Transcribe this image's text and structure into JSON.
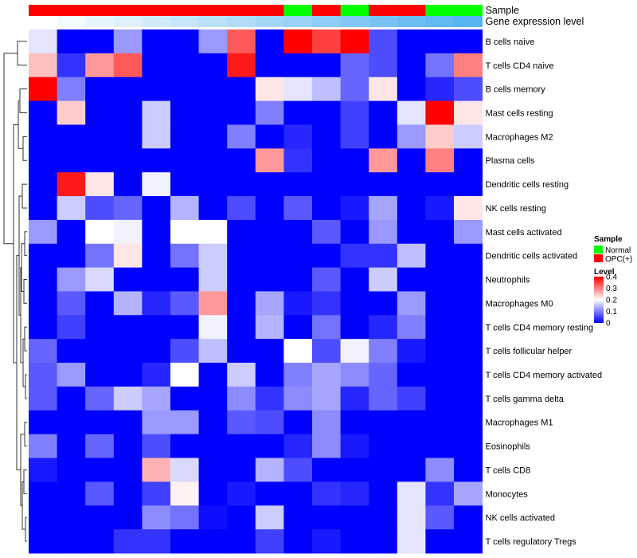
{
  "chart_data": {
    "type": "heatmap",
    "annotation_labels": [
      "Sample",
      "Gene expression level"
    ],
    "rows": [
      "B cells naive",
      "T cells CD4 naive",
      "B cells memory",
      "Mast cells resting",
      "Macrophages M2",
      "Plasma cells",
      "Dendritic cells resting",
      "NK cells resting",
      "Mast cells activated",
      "Dendritic cells activated",
      "Neutrophils",
      "Macrophages M0",
      "T cells CD4 memory resting",
      "T cells follicular helper",
      "T cells CD4 memory activated",
      "T cells gamma delta",
      "Macrophages M1",
      "Eosinophils",
      "T cells CD8",
      "Monocytes",
      "NK cells activated",
      "T cells regulatory  Tregs"
    ],
    "sample_groups": [
      "OPC(+)",
      "OPC(+)",
      "OPC(+)",
      "OPC(+)",
      "OPC(+)",
      "OPC(+)",
      "OPC(+)",
      "OPC(+)",
      "OPC(+)",
      "Normal",
      "OPC(+)",
      "Normal",
      "OPC(+)",
      "OPC(+)",
      "Normal",
      "Normal"
    ],
    "gene_expression_level": [
      0,
      0.04,
      0.08,
      0.12,
      0.16,
      0.2,
      0.24,
      0.28,
      0.32,
      0.36,
      0.4,
      0.44,
      0.48,
      0.52,
      0.56,
      0.6
    ],
    "values": [
      [
        0.18,
        0.0,
        0.0,
        0.12,
        0.0,
        0.0,
        0.12,
        0.33,
        0.0,
        0.4,
        0.35,
        0.4,
        0.06,
        0.0,
        0.0,
        0.0
      ],
      [
        0.25,
        0.04,
        0.28,
        0.33,
        0.0,
        0.0,
        0.0,
        0.38,
        0.0,
        0.0,
        0.0,
        0.08,
        0.06,
        0.0,
        0.09,
        0.3
      ],
      [
        0.4,
        0.1,
        0.0,
        0.0,
        0.0,
        0.0,
        0.0,
        0.0,
        0.22,
        0.18,
        0.15,
        0.08,
        0.22,
        0.0,
        0.03,
        0.06
      ],
      [
        0.0,
        0.24,
        0.0,
        0.0,
        0.16,
        0.0,
        0.0,
        0.0,
        0.1,
        0.0,
        0.0,
        0.05,
        0.0,
        0.18,
        0.4,
        0.22
      ],
      [
        0.0,
        0.0,
        0.0,
        0.0,
        0.16,
        0.0,
        0.0,
        0.1,
        0.0,
        0.03,
        0.0,
        0.05,
        0.0,
        0.12,
        0.24,
        0.16
      ],
      [
        0.0,
        0.0,
        0.0,
        0.0,
        0.0,
        0.0,
        0.0,
        0.0,
        0.28,
        0.04,
        0.0,
        0.0,
        0.28,
        0.0,
        0.3,
        0.0
      ],
      [
        0.0,
        0.38,
        0.22,
        0.0,
        0.19,
        0.0,
        0.0,
        0.0,
        0.0,
        0.0,
        0.0,
        0.0,
        0.0,
        0.0,
        0.0,
        0.0
      ],
      [
        0.0,
        0.16,
        0.06,
        0.08,
        0.0,
        0.14,
        0.0,
        0.06,
        0.0,
        0.07,
        0.0,
        0.02,
        0.13,
        0.0,
        0.02,
        0.22
      ],
      [
        0.12,
        0.0,
        0.2,
        0.19,
        0.0,
        0.2,
        0.2,
        0.0,
        0.0,
        0.0,
        0.07,
        0.0,
        0.12,
        0.0,
        0.0,
        0.12
      ],
      [
        0.0,
        0.0,
        0.09,
        0.22,
        0.0,
        0.09,
        0.16,
        0.0,
        0.0,
        0.0,
        0.0,
        0.04,
        0.04,
        0.15,
        0.0,
        0.0
      ],
      [
        0.0,
        0.12,
        0.17,
        0.0,
        0.0,
        0.0,
        0.16,
        0.0,
        0.0,
        0.0,
        0.07,
        0.0,
        0.16,
        0.0,
        0.0,
        0.0
      ],
      [
        0.0,
        0.07,
        0.0,
        0.14,
        0.03,
        0.07,
        0.28,
        0.0,
        0.13,
        0.02,
        0.04,
        0.0,
        0.0,
        0.12,
        0.0,
        0.0
      ],
      [
        0.0,
        0.05,
        0.0,
        0.0,
        0.0,
        0.0,
        0.19,
        0.0,
        0.14,
        0.0,
        0.09,
        0.0,
        0.03,
        0.1,
        0.0,
        0.0
      ],
      [
        0.08,
        0.0,
        0.0,
        0.0,
        0.0,
        0.06,
        0.15,
        0.0,
        0.0,
        0.2,
        0.06,
        0.19,
        0.1,
        0.02,
        0.0,
        0.0
      ],
      [
        0.07,
        0.12,
        0.0,
        0.0,
        0.03,
        0.2,
        0.0,
        0.16,
        0.0,
        0.1,
        0.13,
        0.11,
        0.08,
        0.0,
        0.0,
        0.0
      ],
      [
        0.07,
        0.0,
        0.08,
        0.16,
        0.13,
        0.0,
        0.0,
        0.11,
        0.04,
        0.11,
        0.13,
        0.03,
        0.08,
        0.05,
        0.0,
        0.0
      ],
      [
        0.0,
        0.0,
        0.0,
        0.0,
        0.12,
        0.12,
        0.0,
        0.07,
        0.06,
        0.0,
        0.11,
        0.0,
        0.0,
        0.0,
        0.0,
        0.0
      ],
      [
        0.1,
        0.0,
        0.08,
        0.0,
        0.06,
        0.0,
        0.0,
        0.0,
        0.0,
        0.03,
        0.11,
        0.02,
        0.0,
        0.0,
        0.0,
        0.0
      ],
      [
        0.02,
        0.0,
        0.0,
        0.0,
        0.26,
        0.17,
        0.0,
        0.0,
        0.14,
        0.06,
        0.0,
        0.0,
        0.0,
        0.0,
        0.11,
        0.0
      ],
      [
        0.0,
        0.0,
        0.07,
        0.0,
        0.05,
        0.21,
        0.0,
        0.02,
        0.0,
        0.0,
        0.04,
        0.03,
        0.0,
        0.18,
        0.04,
        0.13
      ],
      [
        0.0,
        0.0,
        0.0,
        0.0,
        0.11,
        0.09,
        0.01,
        0.0,
        0.16,
        0.0,
        0.0,
        0.0,
        0.0,
        0.18,
        0.07,
        0.0
      ],
      [
        0.0,
        0.0,
        0.0,
        0.04,
        0.04,
        0.0,
        0.0,
        0.0,
        0.05,
        0.0,
        0.02,
        0.0,
        0.0,
        0.18,
        0.0,
        0.0
      ]
    ],
    "legend": {
      "sample_title": "Sample",
      "sample_items": [
        {
          "label": "Normal",
          "color": "#00ff00"
        },
        {
          "label": "OPC(+)",
          "color": "#ff0000"
        }
      ],
      "level_title": "Level",
      "level_ticks": [
        "0.4",
        "0.3",
        "0.2",
        "0.1",
        "0"
      ],
      "level_tick_values": [
        0.4,
        0.3,
        0.2,
        0.1,
        0
      ]
    },
    "color_scale": {
      "low": "#0000ff",
      "mid": "#ffffff",
      "high": "#ff0000",
      "min": 0,
      "max": 0.4
    },
    "group_colors": {
      "Normal": "#00ff00",
      "OPC(+)": "#ff0000"
    },
    "expression_colors": {
      "low": "#ffffff",
      "high": "#56b4f0"
    }
  }
}
